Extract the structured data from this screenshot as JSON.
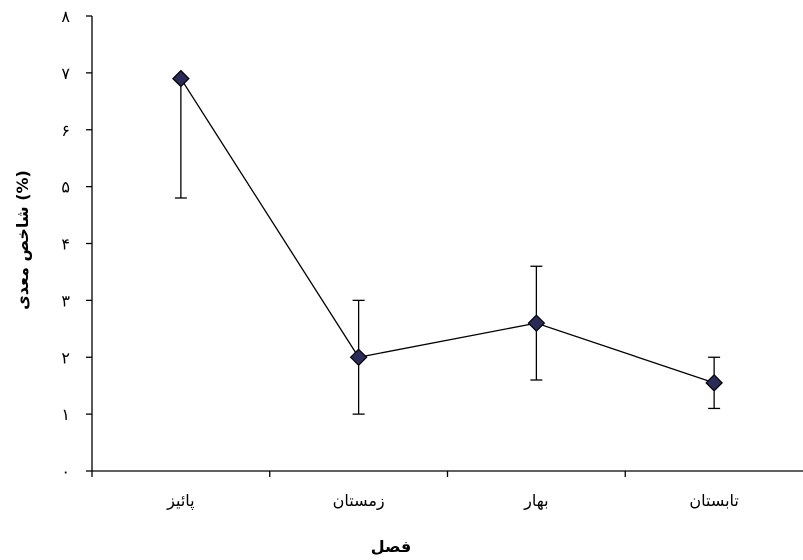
{
  "chart_data": {
    "type": "line",
    "categories": [
      "پائیز",
      "زمستان",
      "بهار",
      "تابستان"
    ],
    "series": [
      {
        "values": [
          6.9,
          2.0,
          2.6,
          1.55
        ],
        "error_low": [
          4.8,
          1.0,
          1.6,
          1.1
        ],
        "error_high": [
          6.9,
          3.0,
          3.6,
          2.0
        ],
        "marker": "diamond",
        "color": "#2b2b5a"
      }
    ],
    "y_tick_labels": [
      "۰",
      "۱",
      "۲",
      "۳",
      "۴",
      "۵",
      "۶",
      "۷",
      "۸"
    ],
    "ylim": [
      0,
      8
    ],
    "xlabel": "فصل",
    "ylabel": "شاخص معدی (%)",
    "grid": false,
    "legend": "none"
  }
}
